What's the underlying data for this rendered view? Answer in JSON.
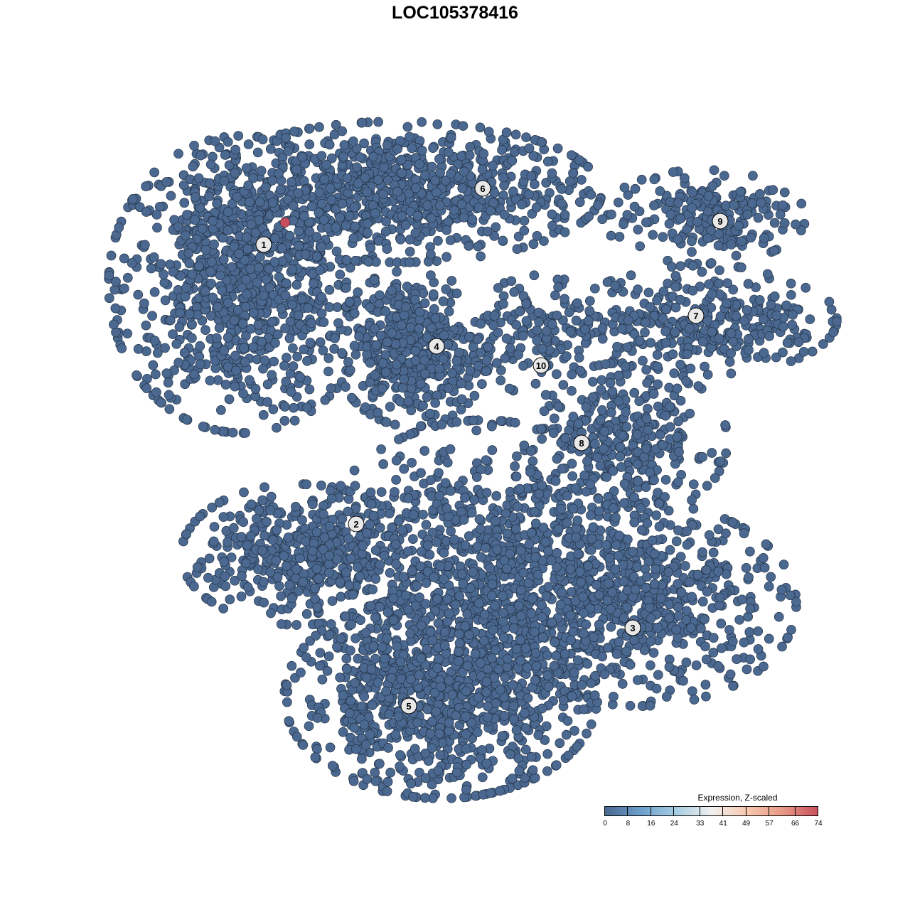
{
  "chart_data": {
    "type": "scatter",
    "title": "LOC105378416",
    "xlabel": "",
    "ylabel": "",
    "xlim": [
      -45,
      50
    ],
    "ylim": [
      -46,
      46
    ],
    "grid": false,
    "axes_visible": false,
    "point_color_default": "#4a6890",
    "point_stroke": "#253447",
    "clusters": [
      {
        "label": "1",
        "center": [
          -30,
          24
        ],
        "spread": [
          8.5,
          9.5
        ],
        "n": 900,
        "label_pos": [
          -26.9,
          29.6
        ]
      },
      {
        "label": "6",
        "center": [
          -8,
          37
        ],
        "spread": [
          13,
          4.5
        ],
        "n": 800,
        "label_pos": [
          3.9,
          37.5
        ]
      },
      {
        "label": "4",
        "center": [
          -6,
          15
        ],
        "spread": [
          5,
          5
        ],
        "n": 420,
        "label_pos": [
          -2.6,
          15.3
        ]
      },
      {
        "label": "9",
        "center": [
          35,
          33.5
        ],
        "spread": [
          6.5,
          3
        ],
        "n": 200,
        "label_pos": [
          37.3,
          32.9
        ]
      },
      {
        "label": "7",
        "center": [
          35,
          19
        ],
        "spread": [
          8.5,
          3.5
        ],
        "n": 320,
        "label_pos": [
          33.9,
          19.6
        ]
      },
      {
        "label": "10",
        "center": [
          12,
          17
        ],
        "spread": [
          4,
          4
        ],
        "n": 130,
        "label_pos": [
          12.1,
          12.6
        ]
      },
      {
        "label": "8",
        "center": [
          24,
          2
        ],
        "spread": [
          6.5,
          5
        ],
        "n": 320,
        "label_pos": [
          17.8,
          1.7
        ]
      },
      {
        "label": "2",
        "center": [
          -22,
          -14
        ],
        "spread": [
          7.5,
          4.5
        ],
        "n": 420,
        "label_pos": [
          -13.9,
          -9.7
        ]
      },
      {
        "label": "5",
        "center": [
          -2,
          -34
        ],
        "spread": [
          10,
          6.5
        ],
        "n": 900,
        "label_pos": [
          -6.5,
          -35.3
        ]
      },
      {
        "label": "3",
        "center": [
          26,
          -21
        ],
        "spread": [
          10,
          6.5
        ],
        "n": 620,
        "label_pos": [
          25,
          -24.3
        ]
      },
      {
        "label": "",
        "center": [
          4,
          -16
        ],
        "spread": [
          11,
          9.5
        ],
        "n": 900
      }
    ],
    "highlighted_points": [
      {
        "x": -23.9,
        "y": 32.7,
        "value": 74
      }
    ]
  },
  "legend": {
    "title": "Expression, Z-scaled",
    "ticks": [
      "0",
      "8",
      "16",
      "24",
      "33",
      "41",
      "49",
      "57",
      "66",
      "74"
    ],
    "range": [
      0,
      74
    ],
    "colors": [
      "#4a6890",
      "#6b9fcb",
      "#a6cde2",
      "#f0f0f0",
      "#f7c8b0",
      "#e89a86",
      "#c8505e"
    ]
  }
}
